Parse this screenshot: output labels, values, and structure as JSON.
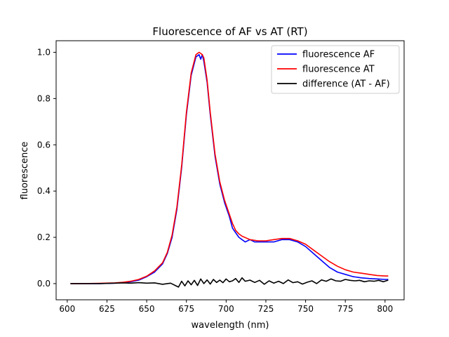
{
  "chart_data": {
    "type": "line",
    "title": "Fluorescence of AF vs AT (RT)",
    "xlabel": "wavelength (nm)",
    "ylabel": "fluorescence",
    "xlim": [
      593,
      812
    ],
    "ylim": [
      -0.07,
      1.05
    ],
    "xticks": [
      600,
      625,
      650,
      675,
      700,
      725,
      750,
      775,
      800
    ],
    "yticks": [
      0.0,
      0.2,
      0.4,
      0.6,
      0.8,
      1.0
    ],
    "xtick_labels": [
      "600",
      "625",
      "650",
      "675",
      "700",
      "725",
      "750",
      "775",
      "800"
    ],
    "ytick_labels": [
      "0.0",
      "0.2",
      "0.4",
      "0.6",
      "0.8",
      "1.0"
    ],
    "grid": false,
    "legend_position": "top-right",
    "series": [
      {
        "name": "fluorescence AF",
        "color": "#0000ff",
        "x": [
          602,
          610,
          620,
          630,
          635,
          640,
          645,
          650,
          655,
          660,
          663,
          666,
          669,
          672,
          675,
          678,
          681,
          683,
          684,
          685,
          686,
          688,
          690,
          693,
          696,
          699,
          702,
          704,
          706,
          708,
          710,
          712,
          715,
          718,
          720,
          725,
          730,
          735,
          740,
          745,
          750,
          755,
          760,
          765,
          770,
          775,
          780,
          785,
          790,
          795,
          800,
          802
        ],
        "values": [
          0.0,
          0.0,
          0.0,
          0.002,
          0.004,
          0.008,
          0.015,
          0.03,
          0.05,
          0.085,
          0.13,
          0.2,
          0.32,
          0.5,
          0.73,
          0.9,
          0.98,
          0.99,
          0.97,
          0.99,
          0.96,
          0.87,
          0.73,
          0.55,
          0.43,
          0.35,
          0.29,
          0.24,
          0.22,
          0.2,
          0.19,
          0.18,
          0.19,
          0.18,
          0.18,
          0.18,
          0.18,
          0.19,
          0.19,
          0.18,
          0.16,
          0.13,
          0.1,
          0.07,
          0.05,
          0.04,
          0.03,
          0.025,
          0.022,
          0.02,
          0.018,
          0.018
        ]
      },
      {
        "name": "fluorescence AT",
        "color": "#ff0000",
        "x": [
          602,
          610,
          620,
          630,
          635,
          640,
          645,
          650,
          655,
          660,
          663,
          666,
          669,
          672,
          675,
          678,
          681,
          683,
          684,
          685,
          686,
          688,
          690,
          693,
          696,
          699,
          702,
          704,
          706,
          708,
          710,
          715,
          720,
          725,
          730,
          735,
          740,
          745,
          750,
          755,
          760,
          765,
          770,
          775,
          780,
          785,
          790,
          795,
          800,
          802
        ],
        "values": [
          0.0,
          0.0,
          0.001,
          0.003,
          0.006,
          0.01,
          0.018,
          0.032,
          0.055,
          0.09,
          0.135,
          0.21,
          0.33,
          0.51,
          0.74,
          0.91,
          0.99,
          1.0,
          0.995,
          0.99,
          0.975,
          0.88,
          0.74,
          0.56,
          0.44,
          0.36,
          0.3,
          0.26,
          0.23,
          0.215,
          0.205,
          0.19,
          0.185,
          0.185,
          0.19,
          0.195,
          0.195,
          0.185,
          0.17,
          0.145,
          0.12,
          0.095,
          0.075,
          0.06,
          0.05,
          0.045,
          0.04,
          0.035,
          0.033,
          0.033
        ]
      },
      {
        "name": "difference (AT - AF)",
        "color": "#000000",
        "x": [
          602,
          610,
          620,
          630,
          635,
          640,
          645,
          650,
          655,
          660,
          665,
          670,
          672,
          674,
          676,
          678,
          680,
          682,
          684,
          686,
          688,
          690,
          692,
          694,
          696,
          698,
          700,
          702,
          704,
          706,
          708,
          710,
          712,
          715,
          718,
          721,
          724,
          727,
          730,
          733,
          736,
          739,
          742,
          745,
          748,
          751,
          754,
          757,
          760,
          763,
          766,
          769,
          772,
          775,
          778,
          781,
          784,
          787,
          790,
          793,
          796,
          799,
          802
        ],
        "values": [
          0.0,
          0.0,
          0.0,
          0.002,
          0.003,
          0.002,
          0.004,
          0.002,
          0.003,
          -0.003,
          0.002,
          -0.015,
          0.01,
          -0.01,
          0.012,
          -0.005,
          0.014,
          -0.008,
          0.02,
          0.0,
          0.016,
          -0.002,
          0.018,
          0.005,
          0.015,
          0.004,
          0.02,
          0.008,
          0.012,
          0.022,
          0.005,
          0.025,
          0.01,
          0.015,
          0.005,
          0.014,
          -0.003,
          0.012,
          0.002,
          0.01,
          0.0,
          0.016,
          0.004,
          0.008,
          -0.002,
          0.006,
          0.012,
          0.0,
          0.016,
          0.01,
          0.02,
          0.012,
          0.01,
          0.018,
          0.014,
          0.012,
          0.014,
          0.008,
          0.012,
          0.01,
          0.014,
          0.008,
          0.015
        ]
      }
    ]
  }
}
